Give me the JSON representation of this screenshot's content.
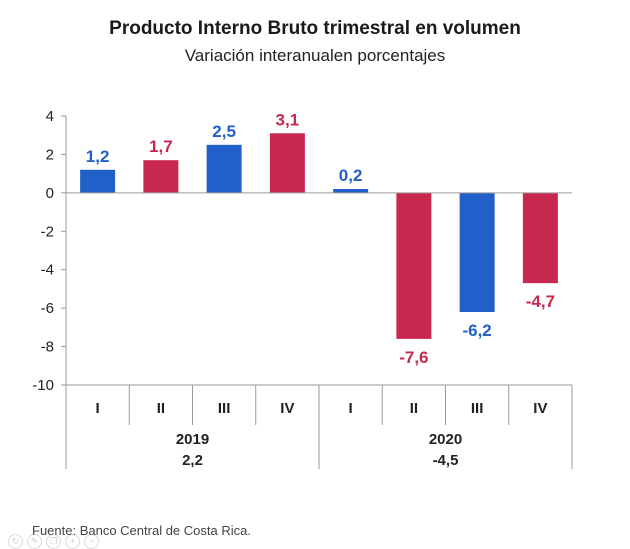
{
  "chart_data": {
    "type": "bar",
    "title": "Producto Interno Bruto trimestral en volumen",
    "subtitle": "Variación interanualen porcentajes",
    "ylim": [
      -10,
      4
    ],
    "yticks": [
      "4",
      "2",
      "0",
      "-2",
      "-4",
      "-6",
      "-8",
      "-10"
    ],
    "ytick_values": [
      4,
      2,
      0,
      -2,
      -4,
      -6,
      -8,
      -10
    ],
    "categories": [
      "I",
      "II",
      "III",
      "IV",
      "I",
      "II",
      "III",
      "IV"
    ],
    "values": [
      1.2,
      1.7,
      2.5,
      3.1,
      0.2,
      -7.6,
      -6.2,
      -4.7
    ],
    "value_labels": [
      "1,2",
      "1,7",
      "2,5",
      "3,1",
      "0,2",
      "-7,6",
      "-6,2",
      "-4,7"
    ],
    "bar_colors": [
      "#2060c8",
      "#c8284e",
      "#2060c8",
      "#c8284e",
      "#2060c8",
      "#c8284e",
      "#2060c8",
      "#c8284e"
    ],
    "groups": [
      {
        "year": "2019",
        "annual": "2,2"
      },
      {
        "year": "2020",
        "annual": "-4,5"
      }
    ]
  },
  "source": "Fuente: Banco Central de Costa Rica."
}
